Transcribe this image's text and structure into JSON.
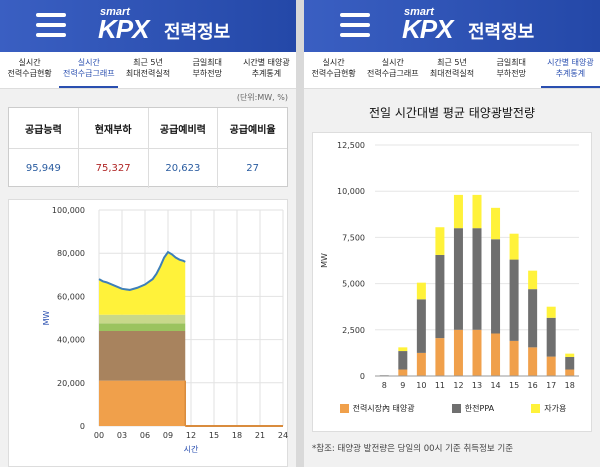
{
  "app": {
    "logo_smart": "smart",
    "logo_kpx": "KPX",
    "title": "전력정보"
  },
  "left": {
    "tabs": [
      {
        "label": "실시간\n전력수급현황",
        "active": false
      },
      {
        "label": "실시간\n전력수급그래프",
        "active": true
      },
      {
        "label": "최근 5년\n최대전력실적",
        "active": false
      },
      {
        "label": "금일최대\n부하전망",
        "active": false
      },
      {
        "label": "시간별 태양광\n추계통계",
        "active": false
      }
    ],
    "unit": "(단위:MW, %)",
    "stats": {
      "headers": [
        "공급능력",
        "현재부하",
        "공급예비력",
        "공급예비율"
      ],
      "values": [
        "95,949",
        "75,327",
        "20,623",
        "27"
      ]
    }
  },
  "right": {
    "tabs": [
      {
        "label": "실시간\n전력수급현황",
        "active": false
      },
      {
        "label": "실시간\n전력수급그래프",
        "active": false
      },
      {
        "label": "최근 5년\n최대전력실적",
        "active": false
      },
      {
        "label": "금일최대\n부하전망",
        "active": false
      },
      {
        "label": "시간별 태양광\n추계통계",
        "active": true
      }
    ],
    "chart_title": "전일 시간대별 평균 태양광발전량",
    "note": "*참조: 태양광 발전량은 당일의 00시 기준 취득정보 기준"
  },
  "colors": {
    "market": "#f0a04b",
    "ppa": "#6f6f6f",
    "self": "#fff23a",
    "brown": "#a8835e",
    "green": "#9bc35f",
    "load_line": "#3e7fb8",
    "header": "#2f55b8"
  },
  "chart_data": [
    {
      "type": "area",
      "xlabel": "시간",
      "ylabel": "MW",
      "x_ticks": [
        "00",
        "03",
        "06",
        "09",
        "12",
        "15",
        "18",
        "21",
        "24"
      ],
      "y_ticks": [
        "0",
        "20,000",
        "40,000",
        "60,000",
        "80,000",
        "100,000"
      ],
      "ylim": [
        0,
        100000
      ],
      "xlim": [
        0,
        24
      ],
      "x": [
        0,
        0.5,
        1,
        2,
        3,
        4,
        5,
        6,
        7,
        7.5,
        8,
        8.5,
        9,
        9.5,
        10,
        10.5,
        11,
        11.25
      ],
      "series": [
        {
          "values": [
            21000,
            21000,
            21000,
            21000,
            21000,
            21000,
            21000,
            21000,
            21000,
            21000,
            21000,
            21000,
            21000,
            21000,
            21000,
            21000,
            21000,
            21000
          ]
        },
        {
          "values": [
            44000,
            44000,
            44000,
            44000,
            44000,
            44000,
            44000,
            44000,
            44000,
            44000,
            44000,
            44000,
            44000,
            44000,
            44000,
            44000,
            44000,
            44000
          ]
        },
        {
          "values": [
            47500,
            47500,
            47500,
            47500,
            47500,
            47500,
            47500,
            47500,
            47500,
            47500,
            47500,
            47500,
            47500,
            47500,
            47500,
            47500,
            47500,
            47500
          ]
        },
        {
          "values": [
            51500,
            51500,
            51500,
            51500,
            51500,
            51500,
            51500,
            51500,
            51500,
            51500,
            51500,
            51500,
            51500,
            51500,
            51500,
            51500,
            51500,
            51500
          ]
        },
        {
          "values": [
            68000,
            67000,
            66500,
            65000,
            63500,
            63000,
            64000,
            65500,
            68000,
            70500,
            74000,
            78000,
            80500,
            79500,
            78000,
            77000,
            76500,
            76000
          ]
        }
      ]
    },
    {
      "type": "bar",
      "ylabel": "MW",
      "categories": [
        "8",
        "9",
        "10",
        "11",
        "12",
        "13",
        "14",
        "15",
        "16",
        "17",
        "18"
      ],
      "ylim": [
        0,
        12500
      ],
      "y_ticks": [
        "0",
        "2,500",
        "5,000",
        "7,500",
        "10,000",
        "12,500"
      ],
      "series": [
        {
          "name": "전력시장內 태양광",
          "values": [
            20,
            350,
            1250,
            2050,
            2500,
            2500,
            2300,
            1900,
            1550,
            1050,
            350
          ]
        },
        {
          "name": "한전PPA",
          "values": [
            20,
            1000,
            2900,
            4500,
            5500,
            5500,
            5100,
            4400,
            3150,
            2100,
            680
          ]
        },
        {
          "name": "자가용",
          "values": [
            0,
            200,
            900,
            1500,
            1800,
            1800,
            1700,
            1400,
            1000,
            600,
            180
          ]
        }
      ]
    }
  ]
}
